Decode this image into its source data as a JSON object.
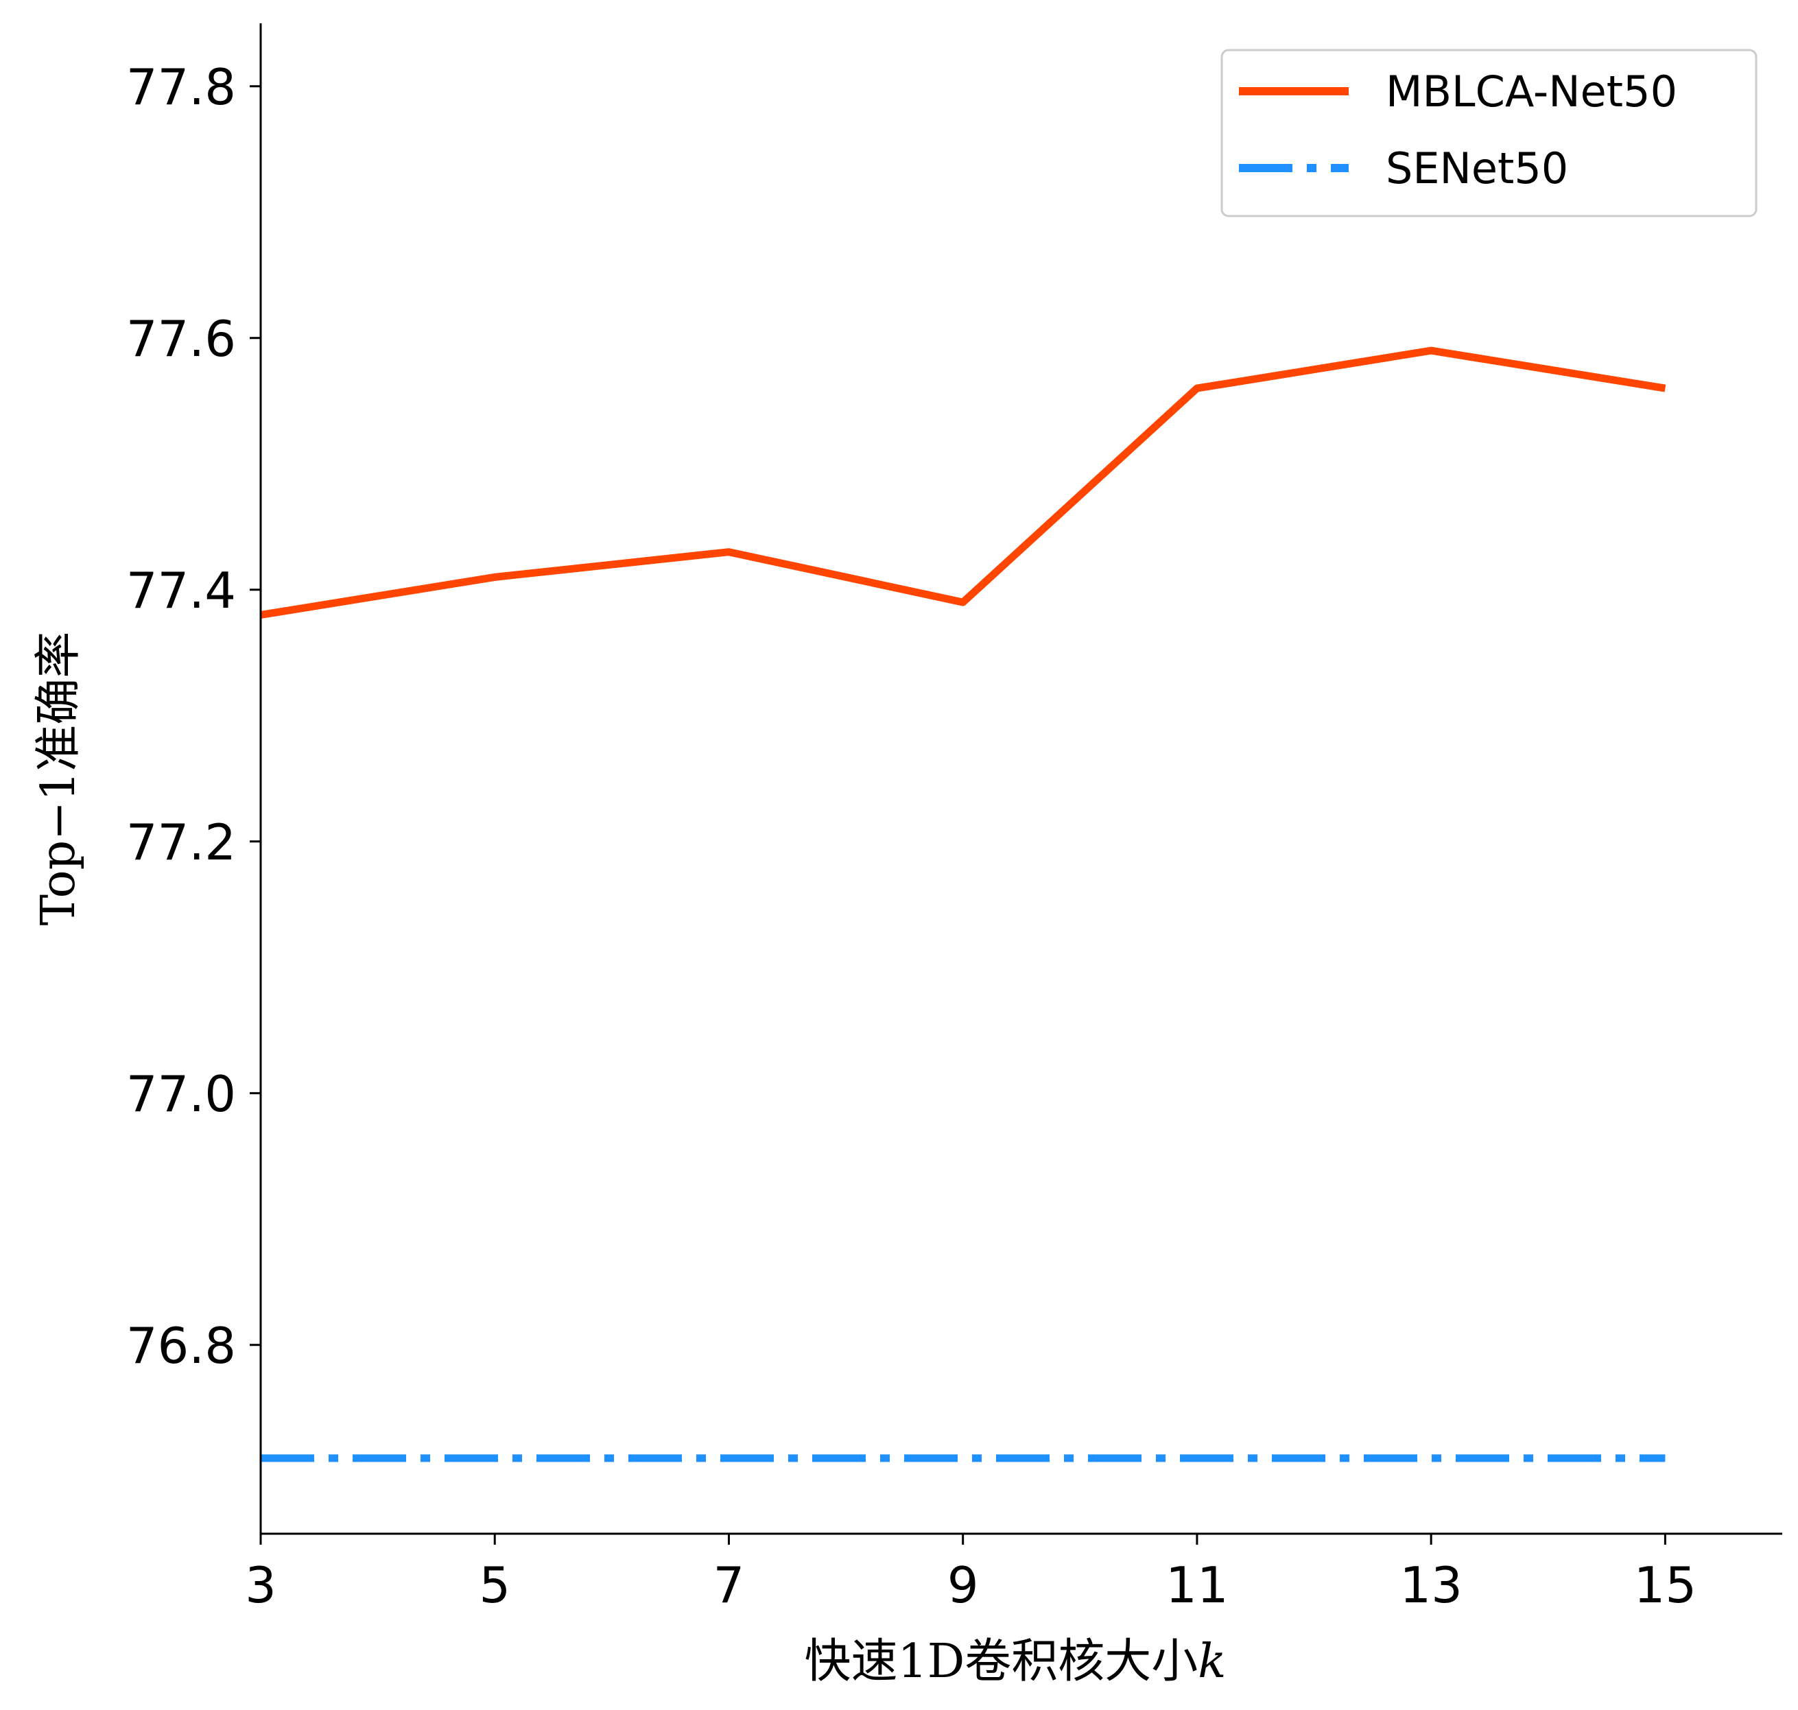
{
  "chart_data": {
    "type": "line",
    "xlabel_main": "快速1D卷积核大小",
    "xlabel_var": "k",
    "ylabel": "Top−1准确率",
    "x_ticks": [
      3,
      5,
      7,
      9,
      11,
      13,
      15
    ],
    "y_ticks": [
      "76.8",
      "77.0",
      "77.2",
      "77.4",
      "77.6",
      "77.8"
    ],
    "xlim": [
      3,
      16
    ],
    "ylim": [
      76.65,
      77.85
    ],
    "grid": false,
    "legend_position": "top-right",
    "series": [
      {
        "name": "MBLCA-Net50",
        "color": "#FF4500",
        "style": "solid",
        "x": [
          3,
          5,
          7,
          9,
          11,
          13,
          15
        ],
        "y": [
          77.38,
          77.41,
          77.43,
          77.39,
          77.56,
          77.59,
          77.56
        ]
      },
      {
        "name": "SENet50",
        "color": "#1E90FF",
        "style": "dashdot",
        "x": [
          3,
          15
        ],
        "y": [
          76.71,
          76.71
        ]
      }
    ]
  }
}
